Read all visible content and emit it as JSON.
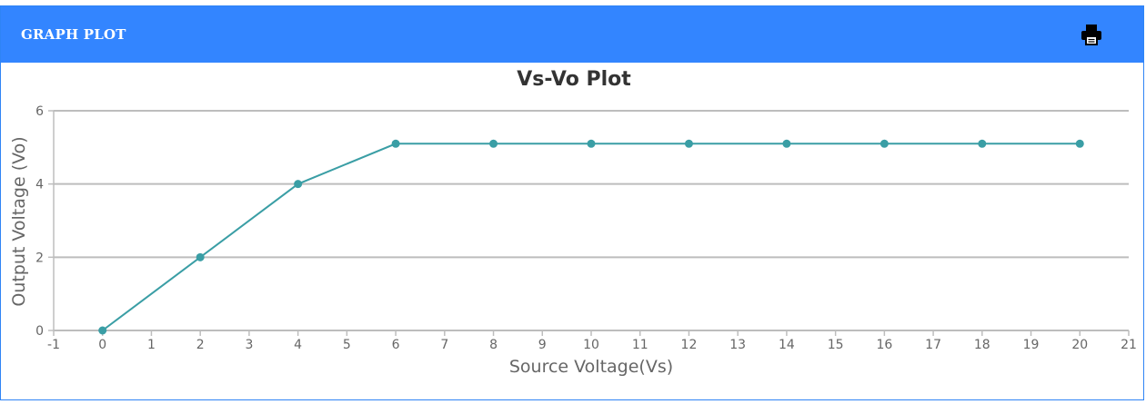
{
  "panel": {
    "title": "GRAPH PLOT",
    "print_icon": "printer-icon"
  },
  "colors": {
    "header": "#3385ff",
    "series": "#3a9ea5",
    "grid": "#bdbdbd",
    "axis_text": "#666666",
    "title_text": "#333333"
  },
  "chart_data": {
    "type": "line",
    "title": "Vs-Vo Plot",
    "xlabel": "Source Voltage(Vs)",
    "ylabel": "Output Voltage (Vo)",
    "xlim": [
      -1,
      21
    ],
    "ylim": [
      0,
      6
    ],
    "x_ticks": [
      -1,
      0,
      1,
      2,
      3,
      4,
      5,
      6,
      7,
      8,
      9,
      10,
      11,
      12,
      13,
      14,
      15,
      16,
      17,
      18,
      19,
      20,
      21
    ],
    "y_ticks": [
      0,
      2,
      4,
      6
    ],
    "grid": "horizontal",
    "series": [
      {
        "x": [
          0,
          2,
          4,
          6,
          8,
          10,
          12,
          14,
          16,
          18,
          20
        ],
        "y": [
          0,
          2,
          4,
          5.1,
          5.1,
          5.1,
          5.1,
          5.1,
          5.1,
          5.1,
          5.1
        ]
      }
    ]
  }
}
